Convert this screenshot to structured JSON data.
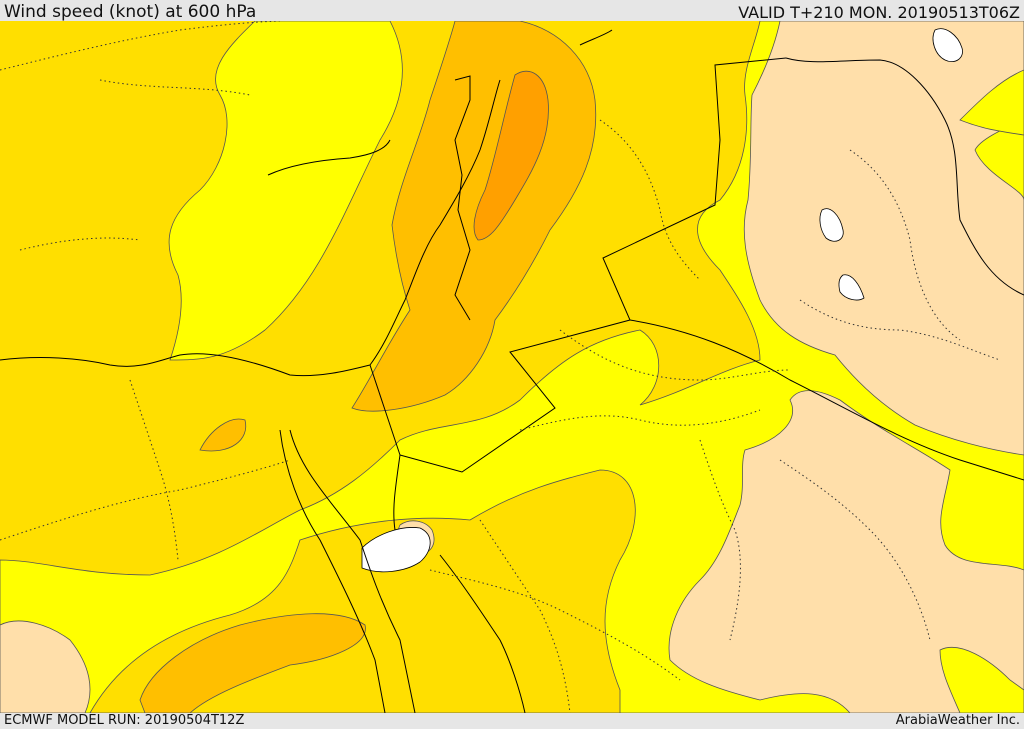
{
  "header": {
    "title": "Wind speed (knot) at 600 hPa",
    "valid": "VALID T+210 MON. 20190513T06Z"
  },
  "footer": {
    "model_run": "ECMWF MODEL RUN: 20190504T12Z",
    "credit": "ArabiaWeather Inc."
  },
  "colors": {
    "wind_15_20": "#ffff00",
    "wind_20_25": "#ffdf00",
    "wind_25_30": "#ffbf00",
    "wind_30_35": "#ffa000",
    "wind_below_15": "#ffdfaa",
    "water": "#ffffff",
    "coastline": "#000000",
    "contour": "#555555"
  }
}
